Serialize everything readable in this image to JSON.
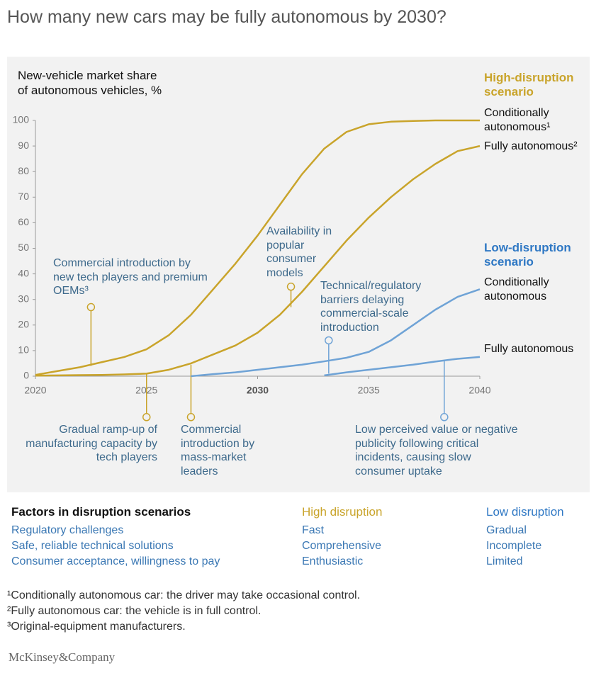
{
  "chart_data": {
    "type": "line",
    "title": "How many new cars may be fully autonomous by 2030?",
    "y_label": [
      "New-vehicle market share",
      "of autonomous vehicles, %"
    ],
    "x": [
      2020,
      2021,
      2022,
      2023,
      2024,
      2025,
      2026,
      2027,
      2028,
      2029,
      2030,
      2031,
      2032,
      2033,
      2034,
      2035,
      2036,
      2037,
      2038,
      2039,
      2040
    ],
    "xlim": [
      2020,
      2040
    ],
    "xticks": [
      2020,
      2025,
      2030,
      2035,
      2040
    ],
    "bold_xticks": [
      2030
    ],
    "ylim": [
      0,
      100
    ],
    "yticks": [
      0,
      10,
      20,
      30,
      40,
      50,
      60,
      70,
      80,
      90,
      100
    ],
    "legend_groups": [
      {
        "label": "High-disruption scenario",
        "color": "#c9a42b"
      },
      {
        "label": "Low-disruption scenario",
        "color": "#2f78c4"
      }
    ],
    "series": [
      {
        "name": "Conditionally autonomous¹",
        "color": "#c9a42b",
        "values": [
          0.5,
          2,
          3.5,
          5.5,
          7.5,
          10.5,
          16,
          24,
          34,
          44,
          55,
          67,
          79,
          89,
          95.5,
          98.5,
          99.5,
          99.8,
          100,
          100,
          100
        ]
      },
      {
        "name": "Fully autonomous²",
        "color": "#c9a42b",
        "values": [
          0.2,
          0.3,
          0.4,
          0.5,
          0.7,
          1,
          2.5,
          5,
          8.5,
          12,
          17,
          24,
          33,
          43,
          53,
          62,
          70,
          77,
          83,
          88,
          90
        ]
      },
      {
        "name": "Conditionally autonomous",
        "color": "#6fa3d6",
        "values": [
          null,
          null,
          null,
          null,
          null,
          null,
          null,
          0,
          0.8,
          1.5,
          2.5,
          3.5,
          4.5,
          5.8,
          7.2,
          9.5,
          14,
          20,
          26,
          31,
          34
        ]
      },
      {
        "name": "Fully autonomous",
        "color": "#6fa3d6",
        "values": [
          null,
          null,
          null,
          null,
          null,
          null,
          null,
          null,
          null,
          null,
          null,
          null,
          null,
          0.3,
          1.5,
          2.5,
          3.5,
          4.5,
          5.7,
          6.8,
          7.5
        ]
      }
    ],
    "annotations": [
      {
        "text": "Commercial introduction by new tech players and premium OEMs³",
        "x": 2022.5,
        "y": 27,
        "to": 4,
        "color": "#c9a42b"
      },
      {
        "text": "Availability in popular consumer models",
        "x": 2031.5,
        "y": 35,
        "to": 27,
        "color": "#c9a42b"
      },
      {
        "text": "Technical/regulatory barriers delaying commercial-scale introduction",
        "x": 2033.2,
        "y": 14,
        "to": 1,
        "color": "#6fa3d6"
      },
      {
        "text": "Gradual ramp-up of manufacturing capacity by tech players",
        "x": 2025,
        "y": -16,
        "to": 1,
        "color": "#c9a42b"
      },
      {
        "text": "Commercial introduction by mass-market leaders",
        "x": 2027,
        "y": -16,
        "to": 4.5,
        "color": "#c9a42b"
      },
      {
        "text": "Low perceived value or negative publicity following critical incidents, causing slow consumer uptake",
        "x": 2038.4,
        "y": -16,
        "to": 6,
        "color": "#6fa3d6"
      }
    ]
  },
  "factors": {
    "title": "Factors in disruption scenarios",
    "columns": [
      "High disruption",
      "Low disruption"
    ],
    "rows": [
      [
        "Regulatory challenges",
        "Fast",
        "Gradual"
      ],
      [
        "Safe, reliable technical solutions",
        "Comprehensive",
        "Incomplete"
      ],
      [
        "Consumer acceptance, willingness to pay",
        "Enthusiastic",
        "Limited"
      ]
    ]
  },
  "footnotes": [
    "¹Conditionally autonomous car: the driver may take occasional control.",
    "²Fully autonomous car: the vehicle is in full control.",
    "³Original-equipment manufacturers."
  ],
  "source": "McKinsey&Company"
}
